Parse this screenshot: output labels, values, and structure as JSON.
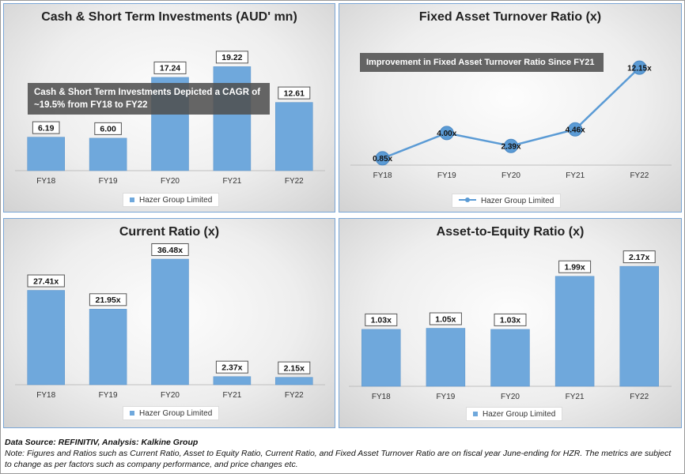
{
  "colors": {
    "bar": "#6fa8dc",
    "bar_edge": "#5b93c9",
    "line": "#5b9bd5",
    "axis": "#bfbfbf"
  },
  "annotations": {
    "cash_note": "Cash & Short Term Investments Depicted a CAGR of ~19.5% from FY18 to FY22",
    "turnover_note": "Improvement in Fixed Asset Turnover Ratio Since FY21"
  },
  "footer": {
    "source": "Data Source: REFINITIV, Analysis: Kalkine Group",
    "note": "Note: Figures and Ratios such as Current Ratio, Asset to Equity Ratio, Current Ratio, and Fixed Asset Turnover Ratio are on fiscal year June-ending for HZR. The metrics are subject to change as per factors such as company performance, and price changes etc."
  },
  "chart_data": [
    {
      "id": "cash",
      "type": "bar",
      "title": "Cash & Short Term Investments (AUD' mn)",
      "categories": [
        "FY18",
        "FY19",
        "FY20",
        "FY21",
        "FY22"
      ],
      "series": [
        {
          "name": "Hazer Group Limited",
          "values": [
            6.19,
            6.0,
            17.24,
            19.22,
            12.61
          ]
        }
      ],
      "data_labels": [
        "6.19",
        "6.00",
        "17.24",
        "19.22",
        "12.61"
      ],
      "ylim": [
        0,
        20
      ],
      "legend_position": "bottom"
    },
    {
      "id": "turnover",
      "type": "line",
      "title": "Fixed Asset Turnover Ratio (x)",
      "categories": [
        "FY18",
        "FY19",
        "FY20",
        "FY21",
        "FY22"
      ],
      "series": [
        {
          "name": "Hazer Group Limited",
          "values": [
            0.85,
            4.0,
            2.39,
            4.46,
            12.15
          ]
        }
      ],
      "data_labels": [
        "0.85x",
        "4.00x",
        "2.39x",
        "4.46x",
        "12.15x"
      ],
      "ylim": [
        0,
        13
      ],
      "legend_position": "bottom"
    },
    {
      "id": "current",
      "type": "bar",
      "title": "Current Ratio (x)",
      "categories": [
        "FY18",
        "FY19",
        "FY20",
        "FY21",
        "FY22"
      ],
      "series": [
        {
          "name": "Hazer Group Limited",
          "values": [
            27.41,
            21.95,
            36.48,
            2.37,
            2.15
          ]
        }
      ],
      "data_labels": [
        "27.41x",
        "21.95x",
        "36.48x",
        "2.37x",
        "2.15x"
      ],
      "ylim": [
        0,
        39
      ],
      "legend_position": "bottom"
    },
    {
      "id": "asset",
      "type": "bar",
      "title": "Asset-to-Equity Ratio (x)",
      "categories": [
        "FY18",
        "FY19",
        "FY20",
        "FY21",
        "FY22"
      ],
      "series": [
        {
          "name": "Hazer Group Limited",
          "values": [
            1.03,
            1.05,
            1.03,
            1.99,
            2.17
          ]
        }
      ],
      "data_labels": [
        "1.03x",
        "1.05x",
        "1.03x",
        "1.99x",
        "2.17x"
      ],
      "ylim": [
        0,
        2.4
      ],
      "legend_position": "bottom"
    }
  ]
}
